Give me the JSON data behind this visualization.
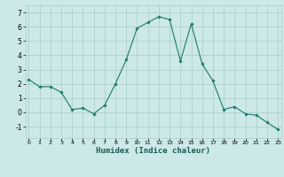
{
  "x": [
    0,
    1,
    2,
    3,
    4,
    5,
    6,
    7,
    8,
    9,
    10,
    11,
    12,
    13,
    14,
    15,
    16,
    17,
    18,
    19,
    20,
    21,
    22,
    23
  ],
  "y": [
    2.3,
    1.8,
    1.8,
    1.4,
    0.2,
    0.3,
    -0.1,
    0.5,
    2.0,
    3.7,
    5.9,
    6.3,
    6.7,
    6.5,
    3.6,
    6.2,
    3.4,
    2.2,
    0.2,
    0.4,
    -0.1,
    -0.2,
    -0.7,
    -1.2
  ],
  "xlabel": "Humidex (Indice chaleur)",
  "ylim": [
    -1.8,
    7.5
  ],
  "yticks": [
    -1,
    0,
    1,
    2,
    3,
    4,
    5,
    6,
    7
  ],
  "xticks": [
    0,
    1,
    2,
    3,
    4,
    5,
    6,
    7,
    8,
    9,
    10,
    11,
    12,
    13,
    14,
    15,
    16,
    17,
    18,
    19,
    20,
    21,
    22,
    23
  ],
  "line_color": "#1a7a6e",
  "marker": "D",
  "marker_size": 1.8,
  "bg_color": "#cce8e8",
  "grid_color": "#aacccc",
  "xlim": [
    -0.3,
    23.3
  ]
}
